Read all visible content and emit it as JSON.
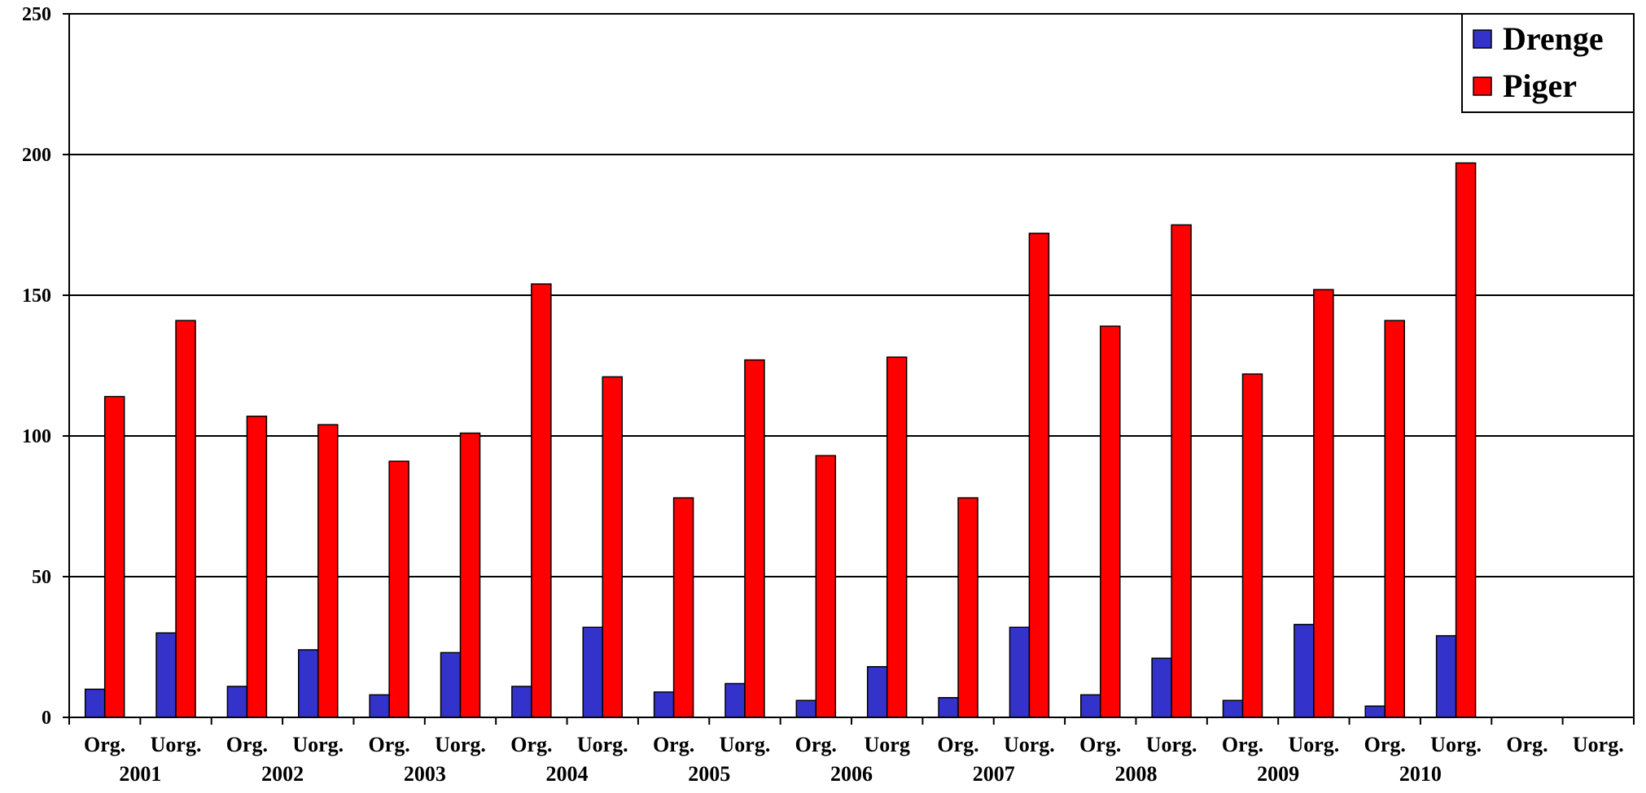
{
  "chart_data": {
    "type": "bar",
    "categories": [
      "Org.",
      "Uorg.",
      "Org.",
      "Uorg.",
      "Org.",
      "Uorg.",
      "Org.",
      "Uorg.",
      "Org.",
      "Uorg.",
      "Org.",
      "Uorg",
      "Org.",
      "Uorg.",
      "Org.",
      "Uorg.",
      "Org.",
      "Uorg.",
      "Org.",
      "Uorg.",
      "Org.",
      "Uorg."
    ],
    "groups": [
      "2001",
      "2002",
      "2003",
      "2004",
      "2005",
      "2006",
      "2007",
      "2008",
      "2009",
      "2010"
    ],
    "series": [
      {
        "name": "Drenge",
        "color": "#3333cc",
        "values": [
          10,
          30,
          11,
          24,
          8,
          23,
          11,
          32,
          9,
          12,
          6,
          18,
          7,
          32,
          8,
          21,
          6,
          33,
          4,
          29,
          null,
          null
        ]
      },
      {
        "name": "Piger",
        "color": "#ff0000",
        "values": [
          114,
          141,
          107,
          104,
          91,
          101,
          154,
          121,
          78,
          127,
          93,
          128,
          78,
          172,
          139,
          175,
          122,
          152,
          141,
          197,
          null,
          null
        ]
      }
    ],
    "ylim": [
      0,
      250
    ],
    "yticks": [
      0,
      50,
      100,
      150,
      200,
      250
    ],
    "grid": true,
    "legend_position": "top-right",
    "title": "",
    "xlabel": "",
    "ylabel": ""
  }
}
